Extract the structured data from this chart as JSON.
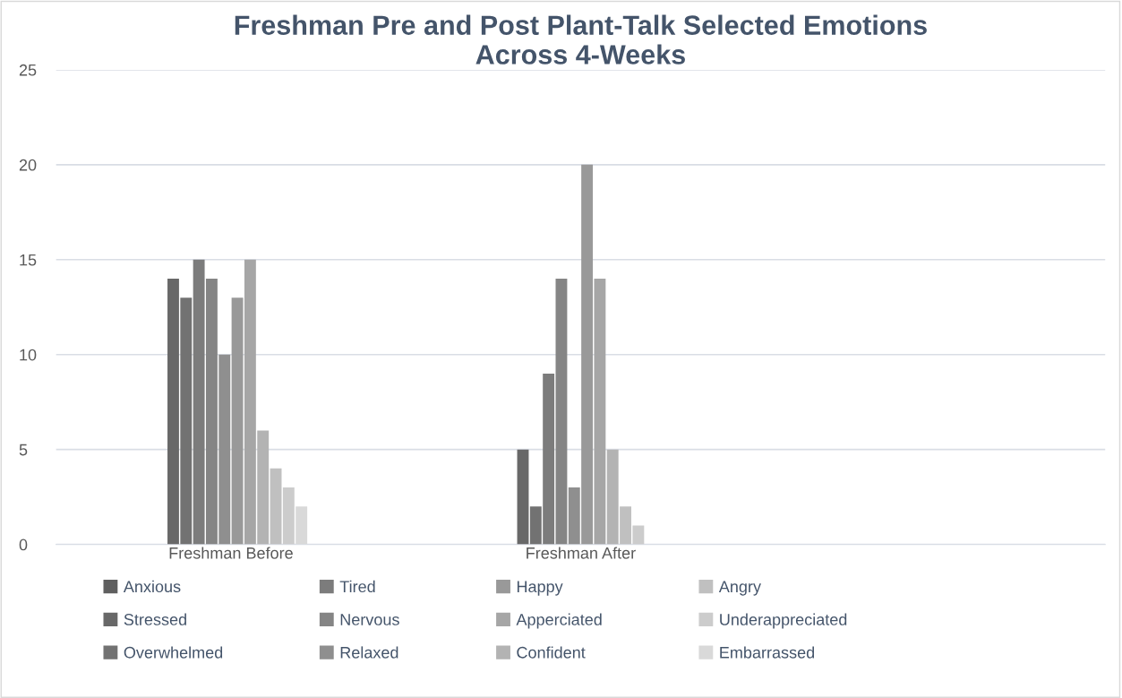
{
  "chart_data": {
    "type": "bar",
    "title": "Freshman Pre and Post Plant-Talk Selected Emotions\nAcross 4-Weeks",
    "categories": [
      "Freshman Before",
      "Freshman After",
      null
    ],
    "series": [
      {
        "name": "Anxious",
        "color": "#5f5f5f",
        "values": [
          0,
          0,
          null
        ]
      },
      {
        "name": "Stressed",
        "color": "#686868",
        "values": [
          14,
          5,
          null
        ]
      },
      {
        "name": "Overwhelmed",
        "color": "#727272",
        "values": [
          13,
          2,
          null
        ]
      },
      {
        "name": "Tired",
        "color": "#7c7c7c",
        "values": [
          15,
          9,
          null
        ]
      },
      {
        "name": "Nervous",
        "color": "#858585",
        "values": [
          14,
          14,
          null
        ]
      },
      {
        "name": "Relaxed",
        "color": "#8f8f8f",
        "values": [
          10,
          3,
          null
        ]
      },
      {
        "name": "Happy",
        "color": "#999999",
        "values": [
          13,
          20,
          null
        ]
      },
      {
        "name": "Apperciated",
        "color": "#a6a6a6",
        "values": [
          15,
          14,
          null
        ]
      },
      {
        "name": "Confident",
        "color": "#b3b3b3",
        "values": [
          6,
          5,
          null
        ]
      },
      {
        "name": "Angry",
        "color": "#c0c0c0",
        "values": [
          4,
          2,
          null
        ]
      },
      {
        "name": "Underappreciated",
        "color": "#cccccc",
        "values": [
          3,
          1,
          null
        ]
      },
      {
        "name": "Embarrassed",
        "color": "#d9d9d9",
        "values": [
          2,
          0,
          null
        ]
      }
    ],
    "ylim": [
      0,
      25
    ],
    "yticks": [
      0,
      5,
      10,
      15,
      20,
      25
    ],
    "grid": "y",
    "legend": "bottom"
  }
}
